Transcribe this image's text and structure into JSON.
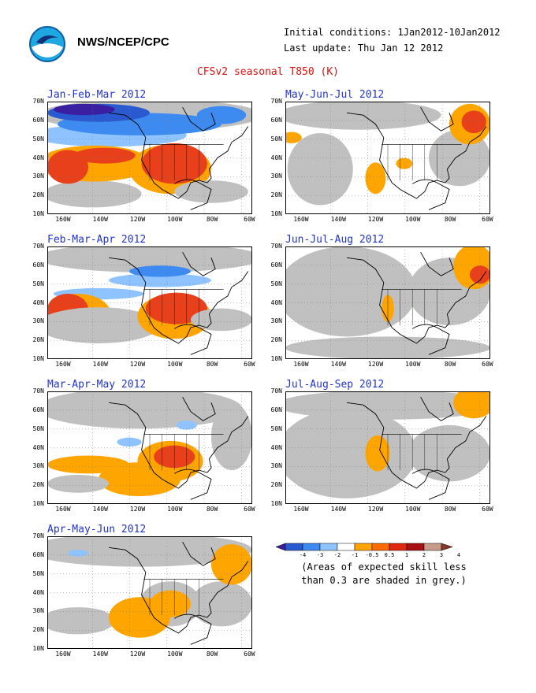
{
  "header": {
    "agency": "NWS/NCEP/CPC",
    "initial_conditions": "Initial conditions: 1Jan2012-10Jan2012",
    "last_update": "Last update: Thu Jan 12 2012",
    "title": "CFSv2 seasonal T850 (K)",
    "logo": "noaa-logo"
  },
  "axes": {
    "lat_labels": [
      "70N",
      "60N",
      "50N",
      "40N",
      "30N",
      "20N",
      "10N"
    ],
    "lon_labels": [
      "160W",
      "140W",
      "120W",
      "100W",
      "80W",
      "60W"
    ]
  },
  "panels": [
    {
      "title": "Jan-Feb-Mar 2012",
      "anomaly": "strong warm over southern US and eastern Pacific, cold over Gulf of Alaska and Canada"
    },
    {
      "title": "May-Jun-Jul 2012",
      "anomaly": "warm over southwest US and northeast Canada"
    },
    {
      "title": "Feb-Mar-Apr 2012",
      "anomaly": "warm over southern US and eastern Pacific, cold over Canada"
    },
    {
      "title": "Jun-Jul-Aug 2012",
      "anomaly": "weak warm over west coast, warm over northeast Canada"
    },
    {
      "title": "Mar-Apr-May 2012",
      "anomaly": "warm over southern US and Pacific, weak cold over Canada"
    },
    {
      "title": "Jul-Aug-Sep 2012",
      "anomaly": "weak warm over western US and northeast Canada"
    },
    {
      "title": "Apr-May-Jun 2012",
      "anomaly": "weak warm over southern US, Pacific and Labrador"
    }
  ],
  "colorbar": {
    "labels": [
      "-4",
      "-3",
      "-2",
      "-1",
      "-0.5",
      "0.5",
      "1",
      "2",
      "3",
      "4"
    ],
    "colors": [
      "#3a1fa0",
      "#2a5ad0",
      "#3d8bf0",
      "#8ec3ff",
      "#ffffff",
      "#ffa500",
      "#ff6a00",
      "#e02810",
      "#a51010",
      "#c89a8a",
      "#8a3a2a"
    ],
    "note_line1": "(Areas of expected skill less",
    "note_line2": "than 0.3 are shaded in grey.)"
  },
  "colors": {
    "grey": "#c0c0c0",
    "warm1": "#ffa500",
    "warm2": "#ff6a00",
    "warm3": "#e8401a",
    "cold1": "#8ec3ff",
    "cold2": "#3d8bf0",
    "cold3": "#2a5ad0",
    "cold4": "#3a1fa0",
    "title_blue": "#2233cc",
    "title_red": "#dd1111"
  }
}
